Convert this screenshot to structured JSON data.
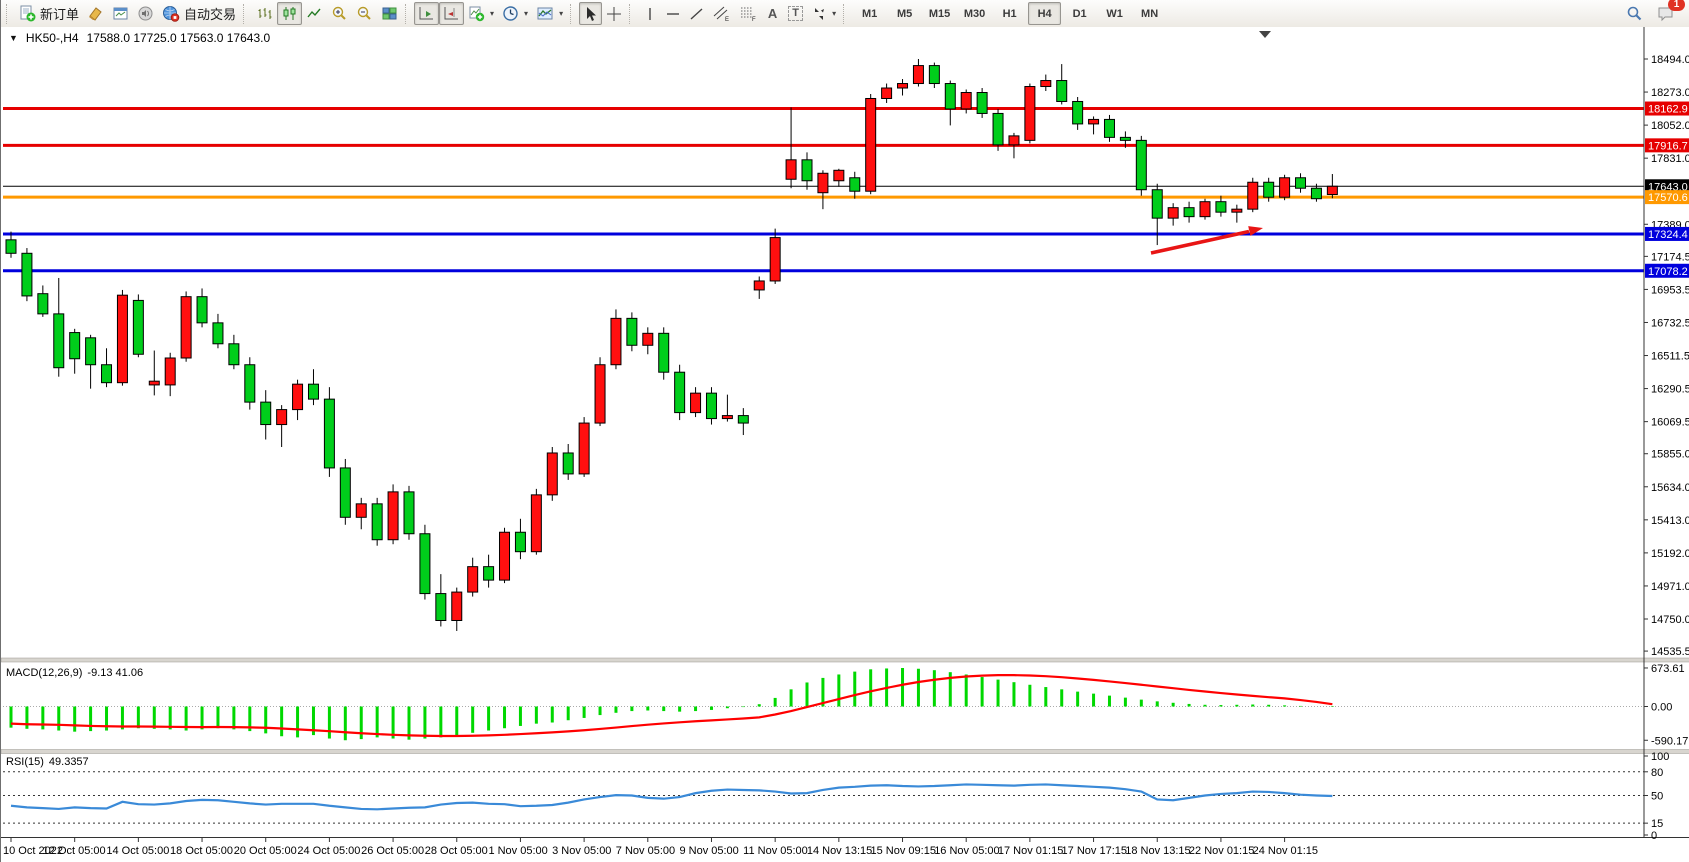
{
  "toolbar": {
    "new_order": "新订单",
    "auto_trading": "自动交易",
    "timeframes": [
      "M1",
      "M5",
      "M15",
      "M30",
      "H1",
      "H4",
      "D1",
      "W1",
      "MN"
    ],
    "active_timeframe": "H4",
    "notification_badge": "1",
    "tool_glyphs": {
      "text": "A",
      "label": "T",
      "channel": "E",
      "fibo": "F"
    }
  },
  "chart_title": {
    "symbol_period": "HK50-,H4",
    "ohlc_text": "17588.0 17725.0 17563.0 17643.0"
  },
  "macd_panel": {
    "name": "MACD(12,26,9)",
    "values": "-9.13 41.06",
    "axis_labels": [
      "673.61",
      "0.00",
      "-590.17"
    ]
  },
  "rsi_panel": {
    "name": "RSI(15)",
    "value": "49.3357",
    "axis_labels": [
      "100",
      "80",
      "50",
      "15",
      "0"
    ]
  },
  "chart_data": {
    "type": "candlestick",
    "symbol": "HK50-",
    "period": "H4",
    "current_bar": {
      "open": 17588.0,
      "high": 17725.0,
      "low": 17563.0,
      "close": 17643.0
    },
    "ylim": [
      14490,
      18700
    ],
    "y_tick_labels": [
      18494.0,
      18273.0,
      18052.0,
      17831.0,
      17389.0,
      17174.5,
      16953.5,
      16732.5,
      16511.5,
      16290.5,
      16069.5,
      15855.0,
      15634.0,
      15413.0,
      15192.0,
      14971.0,
      14750.0,
      14535.5
    ],
    "x_tick_labels": [
      "10 Oct 2022",
      "12 Oct 05:00",
      "14 Oct 05:00",
      "18 Oct 05:00",
      "20 Oct 05:00",
      "24 Oct 05:00",
      "26 Oct 05:00",
      "28 Oct 05:00",
      "1 Nov 05:00",
      "3 Nov 05:00",
      "7 Nov 05:00",
      "9 Nov 05:00",
      "11 Nov 05:00",
      "14 Nov 13:15",
      "15 Nov 09:15",
      "16 Nov 05:00",
      "17 Nov 01:15",
      "17 Nov 17:15",
      "18 Nov 13:15",
      "22 Nov 01:15",
      "24 Nov 01:15"
    ],
    "horizontal_lines": [
      {
        "price": 18162.9,
        "label": "18162.9",
        "color": "#e60000",
        "width": 3
      },
      {
        "price": 17916.7,
        "label": "17916.7",
        "color": "#e60000",
        "width": 3
      },
      {
        "price": 17643.0,
        "label": "17643.0",
        "color": "#000000",
        "width": 1
      },
      {
        "price": 17570.6,
        "label": "17570.6",
        "color": "#ff9900",
        "width": 3
      },
      {
        "price": 17324.4,
        "label": "17324.4",
        "color": "#0000dd",
        "width": 3
      },
      {
        "price": 17078.2,
        "label": "17078.2",
        "color": "#0000dd",
        "width": 3
      }
    ],
    "colors": {
      "bull": "#ff0f0f",
      "bear": "#00ce1b",
      "wick": "#000000",
      "macd_hist": "#00d800",
      "macd_signal": "#ff0000",
      "rsi_line": "#3a8ad8",
      "arrow": "#e81515"
    },
    "candles_ohlc": [
      [
        17285,
        17340,
        17165,
        17195
      ],
      [
        17195,
        17230,
        16875,
        16910
      ],
      [
        16925,
        16980,
        16770,
        16790
      ],
      [
        16790,
        17030,
        16370,
        16430
      ],
      [
        16665,
        16690,
        16390,
        16490
      ],
      [
        16630,
        16650,
        16290,
        16450
      ],
      [
        16450,
        16560,
        16300,
        16330
      ],
      [
        16330,
        16950,
        16310,
        16915
      ],
      [
        16880,
        16920,
        16500,
        16520
      ],
      [
        16315,
        16545,
        16245,
        16340
      ],
      [
        16315,
        16530,
        16240,
        16495
      ],
      [
        16495,
        16940,
        16470,
        16905
      ],
      [
        16905,
        16960,
        16700,
        16730
      ],
      [
        16730,
        16790,
        16560,
        16590
      ],
      [
        16590,
        16650,
        16420,
        16450
      ],
      [
        16450,
        16500,
        16150,
        16200
      ],
      [
        16200,
        16280,
        15950,
        16050
      ],
      [
        16050,
        16180,
        15900,
        16150
      ],
      [
        16150,
        16350,
        16080,
        16320
      ],
      [
        16320,
        16420,
        16180,
        16220
      ],
      [
        16220,
        16300,
        15700,
        15760
      ],
      [
        15760,
        15820,
        15380,
        15430
      ],
      [
        15430,
        15560,
        15350,
        15520
      ],
      [
        15520,
        15560,
        15240,
        15280
      ],
      [
        15280,
        15650,
        15250,
        15600
      ],
      [
        15600,
        15640,
        15280,
        15320
      ],
      [
        15320,
        15380,
        14880,
        14920
      ],
      [
        14920,
        15050,
        14700,
        14740
      ],
      [
        14740,
        14960,
        14670,
        14930
      ],
      [
        14930,
        15160,
        14900,
        15100
      ],
      [
        15100,
        15180,
        14960,
        15010
      ],
      [
        15010,
        15360,
        14990,
        15330
      ],
      [
        15330,
        15420,
        15150,
        15200
      ],
      [
        15200,
        15620,
        15180,
        15580
      ],
      [
        15580,
        15900,
        15540,
        15860
      ],
      [
        15860,
        15920,
        15680,
        15720
      ],
      [
        15720,
        16100,
        15700,
        16060
      ],
      [
        16060,
        16500,
        16040,
        16450
      ],
      [
        16450,
        16820,
        16420,
        16760
      ],
      [
        16760,
        16800,
        16540,
        16580
      ],
      [
        16580,
        16700,
        16520,
        16660
      ],
      [
        16660,
        16700,
        16350,
        16400
      ],
      [
        16400,
        16450,
        16080,
        16130
      ],
      [
        16130,
        16300,
        16100,
        16260
      ],
      [
        16260,
        16300,
        16050,
        16090
      ],
      [
        16090,
        16250,
        16070,
        16110
      ],
      [
        16110,
        16160,
        15980,
        16060
      ],
      [
        16950,
        17040,
        16890,
        17010
      ],
      [
        17010,
        17360,
        16990,
        17300
      ],
      [
        17690,
        18170,
        17630,
        17820
      ],
      [
        17820,
        17870,
        17620,
        17680
      ],
      [
        17600,
        17750,
        17490,
        17730
      ],
      [
        17680,
        17760,
        17640,
        17750
      ],
      [
        17700,
        17740,
        17560,
        17610
      ],
      [
        17610,
        18260,
        17590,
        18230
      ],
      [
        18230,
        18330,
        18200,
        18300
      ],
      [
        18300,
        18360,
        18250,
        18330
      ],
      [
        18330,
        18494,
        18310,
        18450
      ],
      [
        18450,
        18470,
        18300,
        18330
      ],
      [
        18330,
        18350,
        18050,
        18160
      ],
      [
        18160,
        18290,
        18130,
        18270
      ],
      [
        18270,
        18300,
        18100,
        18130
      ],
      [
        18130,
        18160,
        17880,
        17920
      ],
      [
        17920,
        18000,
        17830,
        17980
      ],
      [
        17950,
        18330,
        17930,
        18310
      ],
      [
        18310,
        18390,
        18280,
        18350
      ],
      [
        18350,
        18460,
        18190,
        18210
      ],
      [
        18210,
        18240,
        18020,
        18060
      ],
      [
        18060,
        18110,
        17990,
        18090
      ],
      [
        18090,
        18120,
        17940,
        17970
      ],
      [
        17970,
        18010,
        17900,
        17950
      ],
      [
        17950,
        17980,
        17580,
        17620
      ],
      [
        17620,
        17660,
        17250,
        17430
      ],
      [
        17430,
        17530,
        17380,
        17500
      ],
      [
        17500,
        17540,
        17400,
        17440
      ],
      [
        17440,
        17560,
        17420,
        17540
      ],
      [
        17540,
        17580,
        17440,
        17470
      ],
      [
        17470,
        17520,
        17400,
        17490
      ],
      [
        17490,
        17700,
        17470,
        17670
      ],
      [
        17670,
        17700,
        17540,
        17570
      ],
      [
        17570,
        17720,
        17550,
        17700
      ],
      [
        17700,
        17730,
        17600,
        17630
      ],
      [
        17630,
        17660,
        17540,
        17560
      ],
      [
        17588,
        17725,
        17563,
        17643
      ]
    ],
    "indicators": [
      {
        "name": "MACD(12,26,9)",
        "current": [
          -9.13,
          41.06
        ],
        "axis": [
          673.61,
          0.0,
          -590.17
        ],
        "hist": [
          -370,
          -390,
          -400,
          -420,
          -440,
          -430,
          -420,
          -400,
          -380,
          -390,
          -400,
          -420,
          -400,
          -380,
          -400,
          -430,
          -470,
          -520,
          -540,
          -500,
          -560,
          -590,
          -570,
          -540,
          -560,
          -580,
          -560,
          -540,
          -500,
          -460,
          -420,
          -380,
          -340,
          -300,
          -280,
          -240,
          -200,
          -150,
          -110,
          -80,
          -70,
          -80,
          -90,
          -80,
          -60,
          -30,
          -10,
          40,
          150,
          300,
          420,
          500,
          560,
          610,
          650,
          665,
          673,
          660,
          635,
          600,
          560,
          515,
          470,
          425,
          380,
          340,
          300,
          260,
          225,
          190,
          155,
          120,
          90,
          65,
          45,
          30,
          25,
          30,
          35,
          30,
          20,
          10,
          0,
          -9
        ],
        "signal": [
          -300,
          -310,
          -315,
          -320,
          -330,
          -340,
          -345,
          -350,
          -350,
          -352,
          -355,
          -358,
          -360,
          -358,
          -360,
          -365,
          -372,
          -385,
          -400,
          -415,
          -432,
          -450,
          -468,
          -482,
          -495,
          -505,
          -512,
          -516,
          -516,
          -512,
          -505,
          -495,
          -482,
          -468,
          -452,
          -435,
          -415,
          -392,
          -368,
          -342,
          -318,
          -296,
          -276,
          -258,
          -242,
          -226,
          -210,
          -190,
          -140,
          -80,
          -10,
          60,
          130,
          200,
          265,
          325,
          380,
          428,
          468,
          500,
          524,
          540,
          548,
          548,
          542,
          530,
          512,
          490,
          465,
          438,
          410,
          380,
          350,
          320,
          290,
          262,
          235,
          210,
          186,
          163,
          142,
          112,
          80,
          41
        ]
      },
      {
        "name": "RSI(15)",
        "current": 49.3357,
        "levels": [
          80,
          50,
          15
        ],
        "range": [
          0,
          100
        ],
        "points": [
          37,
          35,
          34,
          33,
          35,
          34,
          33.5,
          42,
          39,
          38.5,
          40,
          43,
          44.5,
          44,
          42,
          40,
          38.5,
          39.5,
          39.5,
          39.5,
          37,
          35,
          33,
          32.5,
          33.5,
          34.5,
          35,
          38.5,
          40.5,
          41,
          39.5,
          39,
          36.5,
          37,
          38,
          41,
          45,
          48,
          50.5,
          50,
          47,
          46,
          48,
          53,
          56,
          57.5,
          57,
          56.5,
          55,
          52.5,
          53,
          57,
          60,
          61,
          62.5,
          63,
          62,
          61.5,
          62,
          63,
          64,
          63.5,
          63,
          62.5,
          63.5,
          64,
          63,
          62,
          61,
          60,
          58,
          55,
          45,
          44,
          47,
          50,
          52,
          53,
          55,
          54.5,
          53,
          51,
          50,
          49.33
        ]
      }
    ],
    "annotations": [
      {
        "type": "arrow",
        "from_price": 17200,
        "to_price": 17330,
        "color": "#e81515"
      }
    ]
  }
}
